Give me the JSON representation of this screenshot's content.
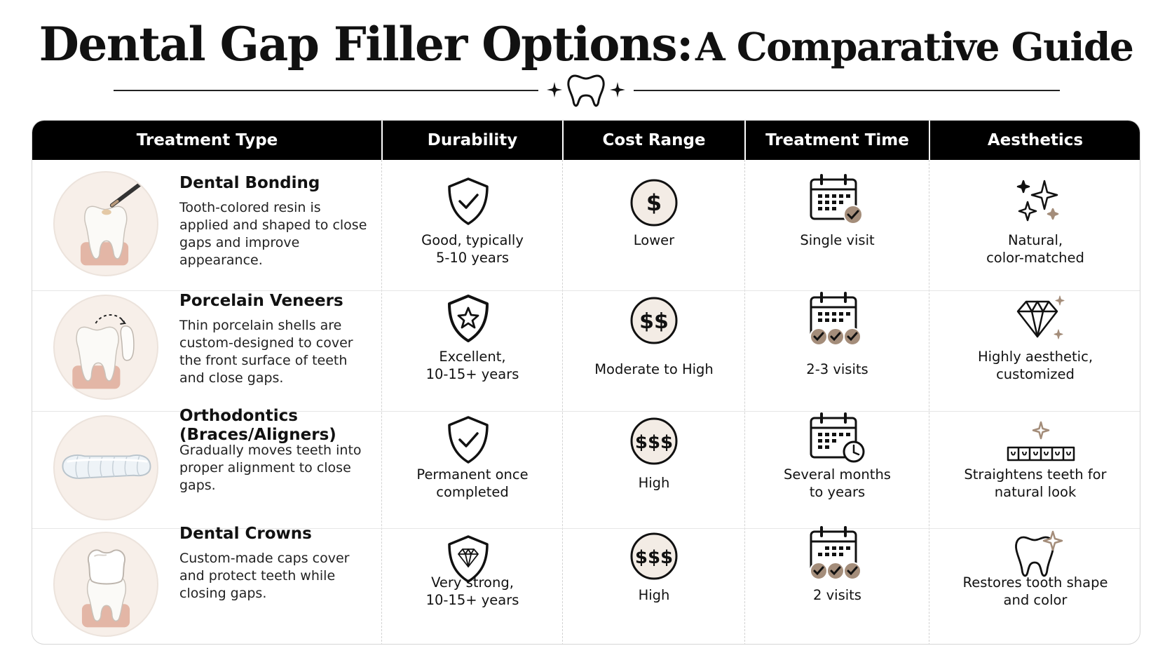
{
  "title": {
    "part1": "Dental Gap Filler Options:",
    "part2": "A Comparative Guide"
  },
  "headers": [
    "Treatment Type",
    "Durability",
    "Cost Range",
    "Treatment Time",
    "Aesthetics"
  ],
  "rows": [
    {
      "name": "Dental Bonding",
      "description": "Tooth-colored resin is applied and shaped to close gaps and improve appearance.",
      "durability": {
        "line1": "Good, typically",
        "line2": "5-10 years",
        "icon": "shield-check-icon"
      },
      "cost": {
        "line1": "Lower",
        "symbol": "$",
        "icon": "dollar-coin-icon"
      },
      "time": {
        "line1": "Single visit",
        "line2": "",
        "icon": "calendar-check-icon"
      },
      "aesthetics": {
        "line1": "Natural,",
        "line2": "color-matched",
        "icon": "sparkles-icon"
      }
    },
    {
      "name": "Porcelain Veneers",
      "description": "Thin porcelain shells are custom-designed to cover the front surface of teeth and close gaps.",
      "durability": {
        "line1": "Excellent,",
        "line2": "10-15+ years",
        "icon": "shield-star-icon"
      },
      "cost": {
        "line1": "Moderate to High",
        "symbol": "$$",
        "icon": "dollar-coin-icon"
      },
      "time": {
        "line1": "2-3 visits",
        "line2": "",
        "icon": "calendar-multi-check-icon"
      },
      "aesthetics": {
        "line1": "Highly aesthetic,",
        "line2": "customized",
        "icon": "diamond-icon"
      }
    },
    {
      "name": "Orthodontics (Braces/Aligners)",
      "name_line1": "Orthodontics",
      "name_line2": "(Braces/Aligners)",
      "description": "Gradually moves teeth into proper alignment to close gaps.",
      "durability": {
        "line1": "Permanent once",
        "line2": "completed",
        "icon": "shield-check-icon"
      },
      "cost": {
        "line1": "High",
        "symbol": "$$$",
        "icon": "dollar-coin-icon"
      },
      "time": {
        "line1": "Several months",
        "line2": "to years",
        "icon": "calendar-clock-icon"
      },
      "aesthetics": {
        "line1": "Straightens teeth for",
        "line2": "natural look",
        "icon": "aligned-teeth-icon"
      }
    },
    {
      "name": "Dental Crowns",
      "description": "Custom-made caps cover and protect teeth while closing gaps.",
      "durability": {
        "line1": "Very strong,",
        "line2": "10-15+ years",
        "icon": "shield-diamond-icon"
      },
      "cost": {
        "line1": "High",
        "symbol": "$$$",
        "icon": "dollar-coin-icon"
      },
      "time": {
        "line1": "2 visits",
        "line2": "",
        "icon": "calendar-multi-check-icon"
      },
      "aesthetics": {
        "line1": "Restores tooth shape",
        "line2": "and color",
        "icon": "tooth-sparkle-icon"
      }
    }
  ],
  "colors": {
    "header_bg": "#000000",
    "accent_tan": "#a48d7a",
    "thumb_bg": "#f7efe9",
    "gum": "#e3b6a6"
  }
}
